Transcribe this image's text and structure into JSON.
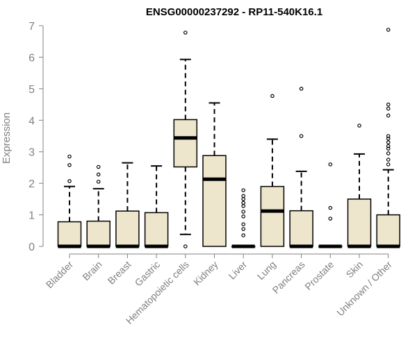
{
  "chart_data": {
    "type": "boxplot",
    "title": "ENSG00000237292 - RP11-540K16.1",
    "xlabel": "",
    "ylabel": "Expression",
    "ylim": [
      0,
      7
    ],
    "yticks": [
      0,
      1,
      2,
      3,
      4,
      5,
      6,
      7
    ],
    "colors": {
      "box_fill": "#ede6cc",
      "stroke": "#000000",
      "axis": "#808080",
      "label": "#808080"
    },
    "categories": [
      "Bladder",
      "Brain",
      "Breast",
      "Gastric",
      "Hematopoietic cells",
      "Kidney",
      "Liver",
      "Lung",
      "Pancreas",
      "Prostate",
      "Skin",
      "Unknown / Other"
    ],
    "boxes": [
      {
        "category": "Bladder",
        "q1": 0,
        "median": 0,
        "q3": 0.78,
        "whisker_low": 0,
        "whisker_high": 1.9,
        "outliers": [
          2.85,
          2.58,
          2.07
        ]
      },
      {
        "category": "Brain",
        "q1": 0,
        "median": 0,
        "q3": 0.8,
        "whisker_low": 0,
        "whisker_high": 1.83,
        "outliers": [
          2.52,
          2.28,
          2.05
        ]
      },
      {
        "category": "Breast",
        "q1": 0,
        "median": 0,
        "q3": 1.12,
        "whisker_low": 0,
        "whisker_high": 2.65,
        "outliers": []
      },
      {
        "category": "Gastric",
        "q1": 0,
        "median": 0,
        "q3": 1.07,
        "whisker_low": 0,
        "whisker_high": 2.55,
        "outliers": []
      },
      {
        "category": "Hematopoietic cells",
        "q1": 2.52,
        "median": 3.44,
        "q3": 4.02,
        "whisker_low": 0.38,
        "whisker_high": 5.93,
        "outliers": [
          6.78,
          0
        ]
      },
      {
        "category": "Kidney",
        "q1": 0,
        "median": 2.13,
        "q3": 2.88,
        "whisker_low": 0,
        "whisker_high": 4.55,
        "outliers": []
      },
      {
        "category": "Liver",
        "q1": 0,
        "median": 0,
        "q3": 0,
        "whisker_low": 0,
        "whisker_high": 0,
        "outliers": [
          1.78,
          1.6,
          1.5,
          1.38,
          1.28,
          1.1,
          0.95,
          0.7,
          0.55,
          0.35
        ]
      },
      {
        "category": "Lung",
        "q1": 0,
        "median": 1.12,
        "q3": 1.9,
        "whisker_low": 0,
        "whisker_high": 3.4,
        "outliers": [
          4.77
        ]
      },
      {
        "category": "Pancreas",
        "q1": 0,
        "median": 0,
        "q3": 1.13,
        "whisker_low": 0,
        "whisker_high": 2.38,
        "outliers": [
          5.0,
          3.5
        ]
      },
      {
        "category": "Prostate",
        "q1": 0,
        "median": 0,
        "q3": 0,
        "whisker_low": 0,
        "whisker_high": 0,
        "outliers": [
          2.6,
          1.22,
          0.88
        ]
      },
      {
        "category": "Skin",
        "q1": 0,
        "median": 0,
        "q3": 1.5,
        "whisker_low": 0,
        "whisker_high": 2.93,
        "outliers": [
          3.83
        ]
      },
      {
        "category": "Unknown / Other",
        "q1": 0,
        "median": 0,
        "q3": 1.0,
        "whisker_low": 0,
        "whisker_high": 2.43,
        "outliers": [
          6.87,
          4.5,
          4.37,
          4.15,
          3.5,
          3.42,
          3.3,
          3.18,
          3.1,
          2.95,
          2.75,
          2.6
        ]
      }
    ]
  }
}
